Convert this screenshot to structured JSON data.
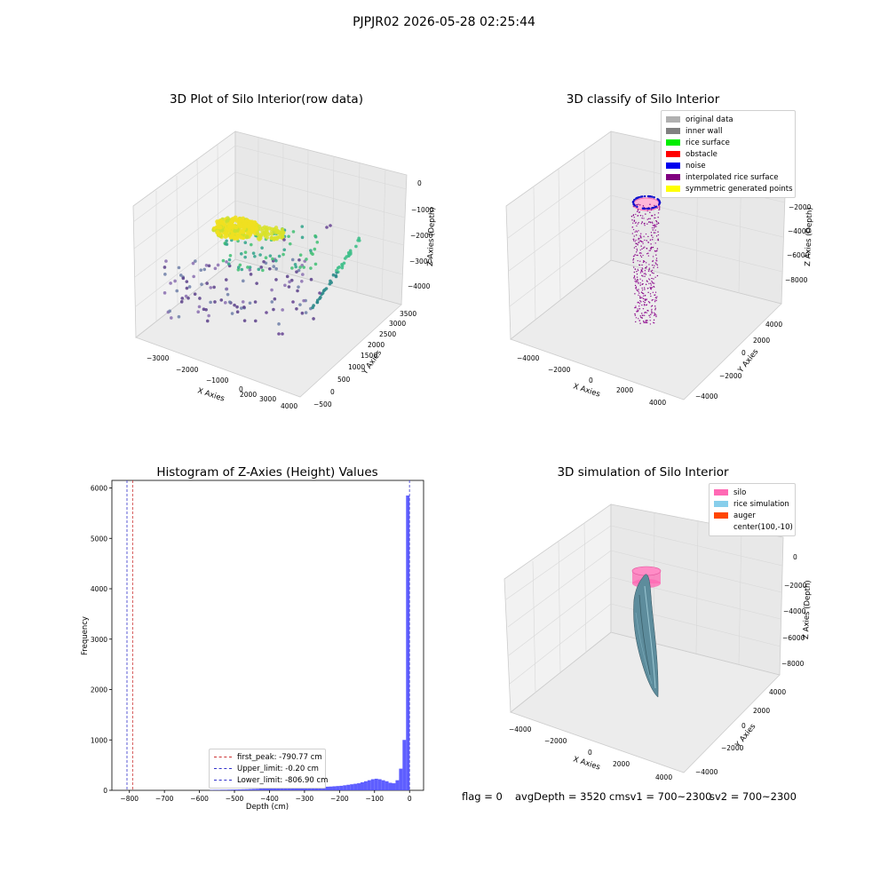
{
  "suptitle": "PJPJR02 2026-05-28 02:25:44",
  "panel1": {
    "title": "3D Plot of Silo Interior(row data)",
    "xlabel": "X Axies",
    "ylabel": "Y Axies",
    "zlabel": "Z Axies (Depth)",
    "xticks": [
      "−3000",
      "−2000",
      "−1000",
      "0",
      "1000",
      "2000",
      "3000",
      "4000"
    ],
    "yticks": [
      "−500",
      "0",
      "500",
      "1000",
      "1500",
      "2000",
      "2500",
      "3000",
      "3500"
    ],
    "zticks": [
      "−4000",
      "−3000",
      "−2000",
      "−1000",
      "0"
    ]
  },
  "panel2": {
    "title": "3D classify of Silo Interior",
    "xlabel": "X Axies",
    "ylabel": "Y Axies",
    "zlabel": "Z Axies (Depth)",
    "xticks": [
      "−4000",
      "−2000",
      "0",
      "2000",
      "4000"
    ],
    "yticks": [
      "−4000",
      "−2000",
      "0",
      "2000",
      "4000"
    ],
    "zticks": [
      "−8000",
      "−6000",
      "−4000",
      "−2000"
    ],
    "legend": [
      {
        "label": "original data",
        "color": "#b0b0b0"
      },
      {
        "label": "inner wall",
        "color": "#808080"
      },
      {
        "label": "rice surface",
        "color": "#00ee00"
      },
      {
        "label": "obstacle",
        "color": "#ff0000"
      },
      {
        "label": "noise",
        "color": "#0000ee"
      },
      {
        "label": "interpolated rice surface",
        "color": "#800080"
      },
      {
        "label": "symmetric generated points",
        "color": "#ffff00"
      }
    ]
  },
  "panel3": {
    "title": "3D simulation of Silo Interior",
    "xlabel": "X Axies",
    "ylabel": "Y Axies",
    "zlabel": "Z Axies (Depth)",
    "xticks": [
      "−4000",
      "−2000",
      "0",
      "2000",
      "4000"
    ],
    "yticks": [
      "−4000",
      "−2000",
      "0",
      "2000",
      "4000"
    ],
    "zticks": [
      "−8000",
      "−6000",
      "−4000",
      "−2000",
      "0"
    ],
    "legend": [
      {
        "label": "silo",
        "color": "#ff69b4"
      },
      {
        "label": "rice simulation",
        "color": "#87ceeb"
      },
      {
        "label": "auger",
        "color": "#ff4500"
      },
      {
        "label": "center(100,-10)",
        "color": ""
      }
    ]
  },
  "footer": {
    "flag": "flag = 0",
    "avg": "avgDepth = 3520 cmsv1 = 700~2300",
    "sv2": "sv2 = 700~2300"
  },
  "chart_data": [
    {
      "type": "scatter",
      "title": "3D Plot of Silo Interior(row data)",
      "xlabel": "X Axies",
      "ylabel": "Y Axies",
      "zlabel": "Z Axies (Depth)",
      "xlim": [
        -3000,
        4000
      ],
      "ylim": [
        -500,
        3500
      ],
      "zlim": [
        -4000,
        0
      ]
    },
    {
      "type": "scatter",
      "title": "3D classify of Silo Interior",
      "xlabel": "X Axies",
      "ylabel": "Y Axies",
      "zlabel": "Z Axies (Depth)",
      "xlim": [
        -4000,
        4000
      ],
      "ylim": [
        -4000,
        4000
      ],
      "zlim": [
        -8000,
        -2000
      ],
      "legend": [
        "original data",
        "inner wall",
        "rice surface",
        "obstacle",
        "noise",
        "interpolated rice surface",
        "symmetric generated points"
      ],
      "legend_position": "top-right"
    },
    {
      "type": "bar",
      "title": "Histogram of Z-Axies (Height) Values",
      "xlabel": "Depth (cm)",
      "ylabel": "Frequency",
      "xlim": [
        -850,
        40
      ],
      "ylim": [
        0,
        6150
      ],
      "xticks": [
        -800,
        -700,
        -600,
        -500,
        -400,
        -300,
        -200,
        -100,
        0
      ],
      "yticks": [
        0,
        1000,
        2000,
        3000,
        4000,
        5000,
        6000
      ],
      "bin_width": 10,
      "bins": [
        {
          "x": -570,
          "y": 8
        },
        {
          "x": -560,
          "y": 10
        },
        {
          "x": -550,
          "y": 10
        },
        {
          "x": -540,
          "y": 12
        },
        {
          "x": -530,
          "y": 12
        },
        {
          "x": -520,
          "y": 14
        },
        {
          "x": -510,
          "y": 15
        },
        {
          "x": -500,
          "y": 16
        },
        {
          "x": -490,
          "y": 18
        },
        {
          "x": -480,
          "y": 20
        },
        {
          "x": -470,
          "y": 22
        },
        {
          "x": -460,
          "y": 25
        },
        {
          "x": -450,
          "y": 28
        },
        {
          "x": -440,
          "y": 30
        },
        {
          "x": -430,
          "y": 35
        },
        {
          "x": -420,
          "y": 40
        },
        {
          "x": -410,
          "y": 48
        },
        {
          "x": -400,
          "y": 50
        },
        {
          "x": -390,
          "y": 45
        },
        {
          "x": -380,
          "y": 42
        },
        {
          "x": -370,
          "y": 40
        },
        {
          "x": -360,
          "y": 42
        },
        {
          "x": -350,
          "y": 45
        },
        {
          "x": -340,
          "y": 50
        },
        {
          "x": -330,
          "y": 48
        },
        {
          "x": -320,
          "y": 45
        },
        {
          "x": -310,
          "y": 50
        },
        {
          "x": -300,
          "y": 55
        },
        {
          "x": -290,
          "y": 55
        },
        {
          "x": -280,
          "y": 60
        },
        {
          "x": -270,
          "y": 62
        },
        {
          "x": -260,
          "y": 65
        },
        {
          "x": -250,
          "y": 70
        },
        {
          "x": -240,
          "y": 72
        },
        {
          "x": -230,
          "y": 75
        },
        {
          "x": -220,
          "y": 80
        },
        {
          "x": -210,
          "y": 85
        },
        {
          "x": -200,
          "y": 90
        },
        {
          "x": -190,
          "y": 100
        },
        {
          "x": -180,
          "y": 110
        },
        {
          "x": -170,
          "y": 120
        },
        {
          "x": -160,
          "y": 130
        },
        {
          "x": -150,
          "y": 140
        },
        {
          "x": -140,
          "y": 160
        },
        {
          "x": -130,
          "y": 180
        },
        {
          "x": -120,
          "y": 200
        },
        {
          "x": -110,
          "y": 220
        },
        {
          "x": -100,
          "y": 230
        },
        {
          "x": -90,
          "y": 220
        },
        {
          "x": -80,
          "y": 200
        },
        {
          "x": -70,
          "y": 180
        },
        {
          "x": -60,
          "y": 150
        },
        {
          "x": -50,
          "y": 140
        },
        {
          "x": -40,
          "y": 200
        },
        {
          "x": -30,
          "y": 430
        },
        {
          "x": -20,
          "y": 1000
        },
        {
          "x": -10,
          "y": 5850
        }
      ],
      "vlines": [
        {
          "label": "first_peak: -790.77 cm",
          "x": -790.77,
          "color": "#cc3333"
        },
        {
          "label": "Upper_limit: -0.20 cm",
          "x": -0.2,
          "color": "#3333cc"
        },
        {
          "label": "Lower_limit: -806.90 cm",
          "x": -806.9,
          "color": "#3333cc"
        }
      ],
      "legend_position": "bottom-center",
      "bar_color": "#5555ff"
    },
    {
      "type": "surface",
      "title": "3D simulation of Silo Interior",
      "xlabel": "X Axies",
      "ylabel": "Y Axies",
      "zlabel": "Z Axies (Depth)",
      "xlim": [
        -4000,
        4000
      ],
      "ylim": [
        -4000,
        4000
      ],
      "zlim": [
        -8000,
        0
      ],
      "legend": [
        "silo",
        "rice simulation",
        "auger",
        "center(100,-10)"
      ],
      "legend_position": "top-right"
    }
  ],
  "histogram": {
    "title": "Histogram of Z-Axies (Height) Values",
    "xlabel": "Depth (cm)",
    "ylabel": "Frequency"
  }
}
